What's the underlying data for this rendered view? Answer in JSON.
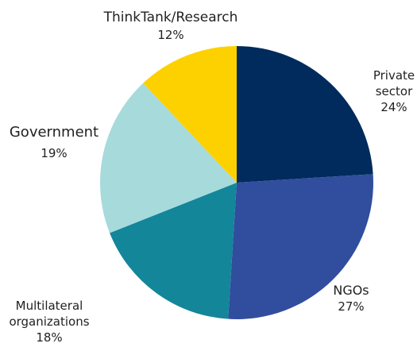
{
  "chart_data": {
    "type": "pie",
    "title": "",
    "legend": "none",
    "slices": [
      {
        "label": "Private sector",
        "label_lines": [
          "Private",
          "sector"
        ],
        "value": 24,
        "value_label": "24%",
        "color": "#002B5C"
      },
      {
        "label": "NGOs",
        "label_lines": [
          "NGOs"
        ],
        "value": 27,
        "value_label": "27%",
        "color": "#314D9E"
      },
      {
        "label": "Multilateral organizations",
        "label_lines": [
          "Multilateral",
          "organizations"
        ],
        "value": 18,
        "value_label": "18%",
        "color": "#13869A"
      },
      {
        "label": "Government",
        "label_lines": [
          "Government"
        ],
        "value": 19,
        "value_label": "19%",
        "color": "#A7DADB"
      },
      {
        "label": "ThinkTank/Research",
        "label_lines": [
          "ThinkTank/Research"
        ],
        "value": 12,
        "value_label": "12%",
        "color": "#FDD100"
      }
    ]
  }
}
